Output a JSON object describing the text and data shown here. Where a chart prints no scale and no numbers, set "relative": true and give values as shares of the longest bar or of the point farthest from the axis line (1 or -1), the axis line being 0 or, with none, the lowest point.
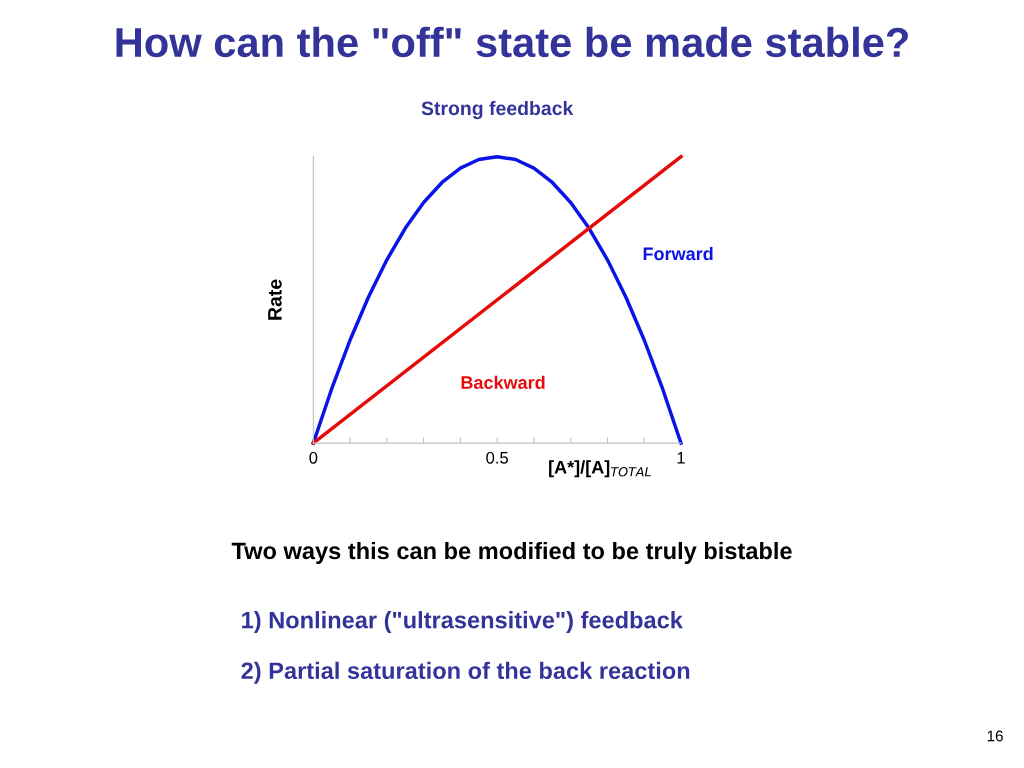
{
  "chart_data": {
    "type": "line",
    "title": "How can the \"off\" state be made stable?",
    "subtitle": "Strong feedback",
    "xlabel": "[A*]/[A]$_{TOTAL}$",
    "ylabel": "Rate",
    "relative": true,
    "x": [
      0,
      0.05,
      0.1,
      0.15,
      0.2,
      0.25,
      0.3,
      0.35,
      0.4,
      0.45,
      0.5,
      0.55,
      0.6,
      0.65,
      0.7,
      0.75,
      0.8,
      0.85,
      0.9,
      0.95,
      1
    ],
    "series": [
      {
        "name": "Forward",
        "color": "#0a14e6",
        "values": [
          0,
          0.19,
          0.36,
          0.51,
          0.64,
          0.75,
          0.84,
          0.91,
          0.96,
          0.99,
          1,
          0.99,
          0.96,
          0.91,
          0.84,
          0.75,
          0.64,
          0.51,
          0.36,
          0.19,
          0
        ]
      },
      {
        "name": "Backward",
        "color": "#e60a0a",
        "x": [
          0,
          1
        ],
        "values": [
          0,
          1
        ]
      }
    ],
    "xlim": [
      0,
      1
    ],
    "xticks": [
      0,
      {
        "value": 0.1,
        "label": null
      },
      {
        "value": 0.2,
        "label": null
      },
      {
        "value": 0.3,
        "label": null
      },
      {
        "value": 0.4,
        "label": null
      },
      0.5,
      {
        "value": 0.6,
        "label": null
      },
      {
        "value": 0.7,
        "label": null
      },
      {
        "value": 0.8,
        "label": null
      },
      {
        "value": 0.9,
        "label": null
      },
      1
    ],
    "grid": false,
    "legend": false,
    "marker": "none",
    "line_style": "solid",
    "annotations": [
      "Two ways this can be modified to be truly bistable",
      "1) Nonlinear (\"ultrasensitive\") feedback",
      "2) Partial saturation of the back reaction",
      "16"
    ]
  }
}
